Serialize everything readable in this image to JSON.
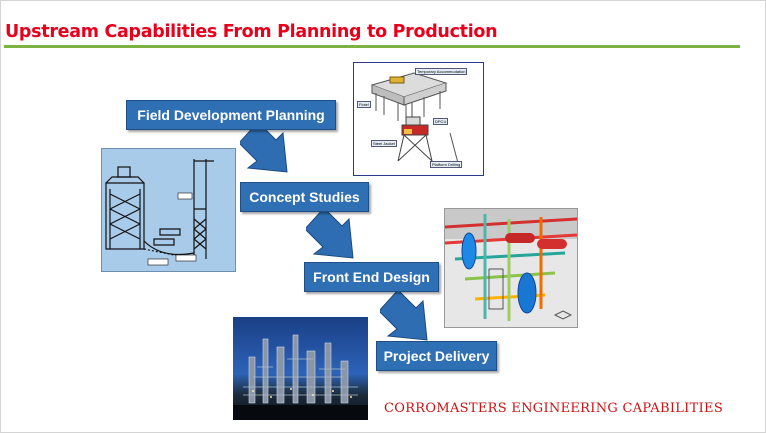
{
  "slide": {
    "title": "Upstream Capabilities From Planning to Production",
    "footer": "CORROMASTERS ENGINEERING CAPABILITIES"
  },
  "steps": [
    {
      "label": "Field Development Planning"
    },
    {
      "label": "Concept Studies"
    },
    {
      "label": "Front End Design"
    },
    {
      "label": "Project Delivery"
    }
  ],
  "images": {
    "platform_diagram": {
      "labels": [
        "Temporary Accommodation",
        "Flotel",
        "DPCU",
        "Steel Jacket",
        "Platform Drilling"
      ]
    }
  },
  "colors": {
    "title": "#e8001c",
    "title_rule": "#7cb342",
    "step_fill": "#2f6fb4",
    "arrow_fill": "#2e6db1",
    "footer": "#cc1111"
  }
}
